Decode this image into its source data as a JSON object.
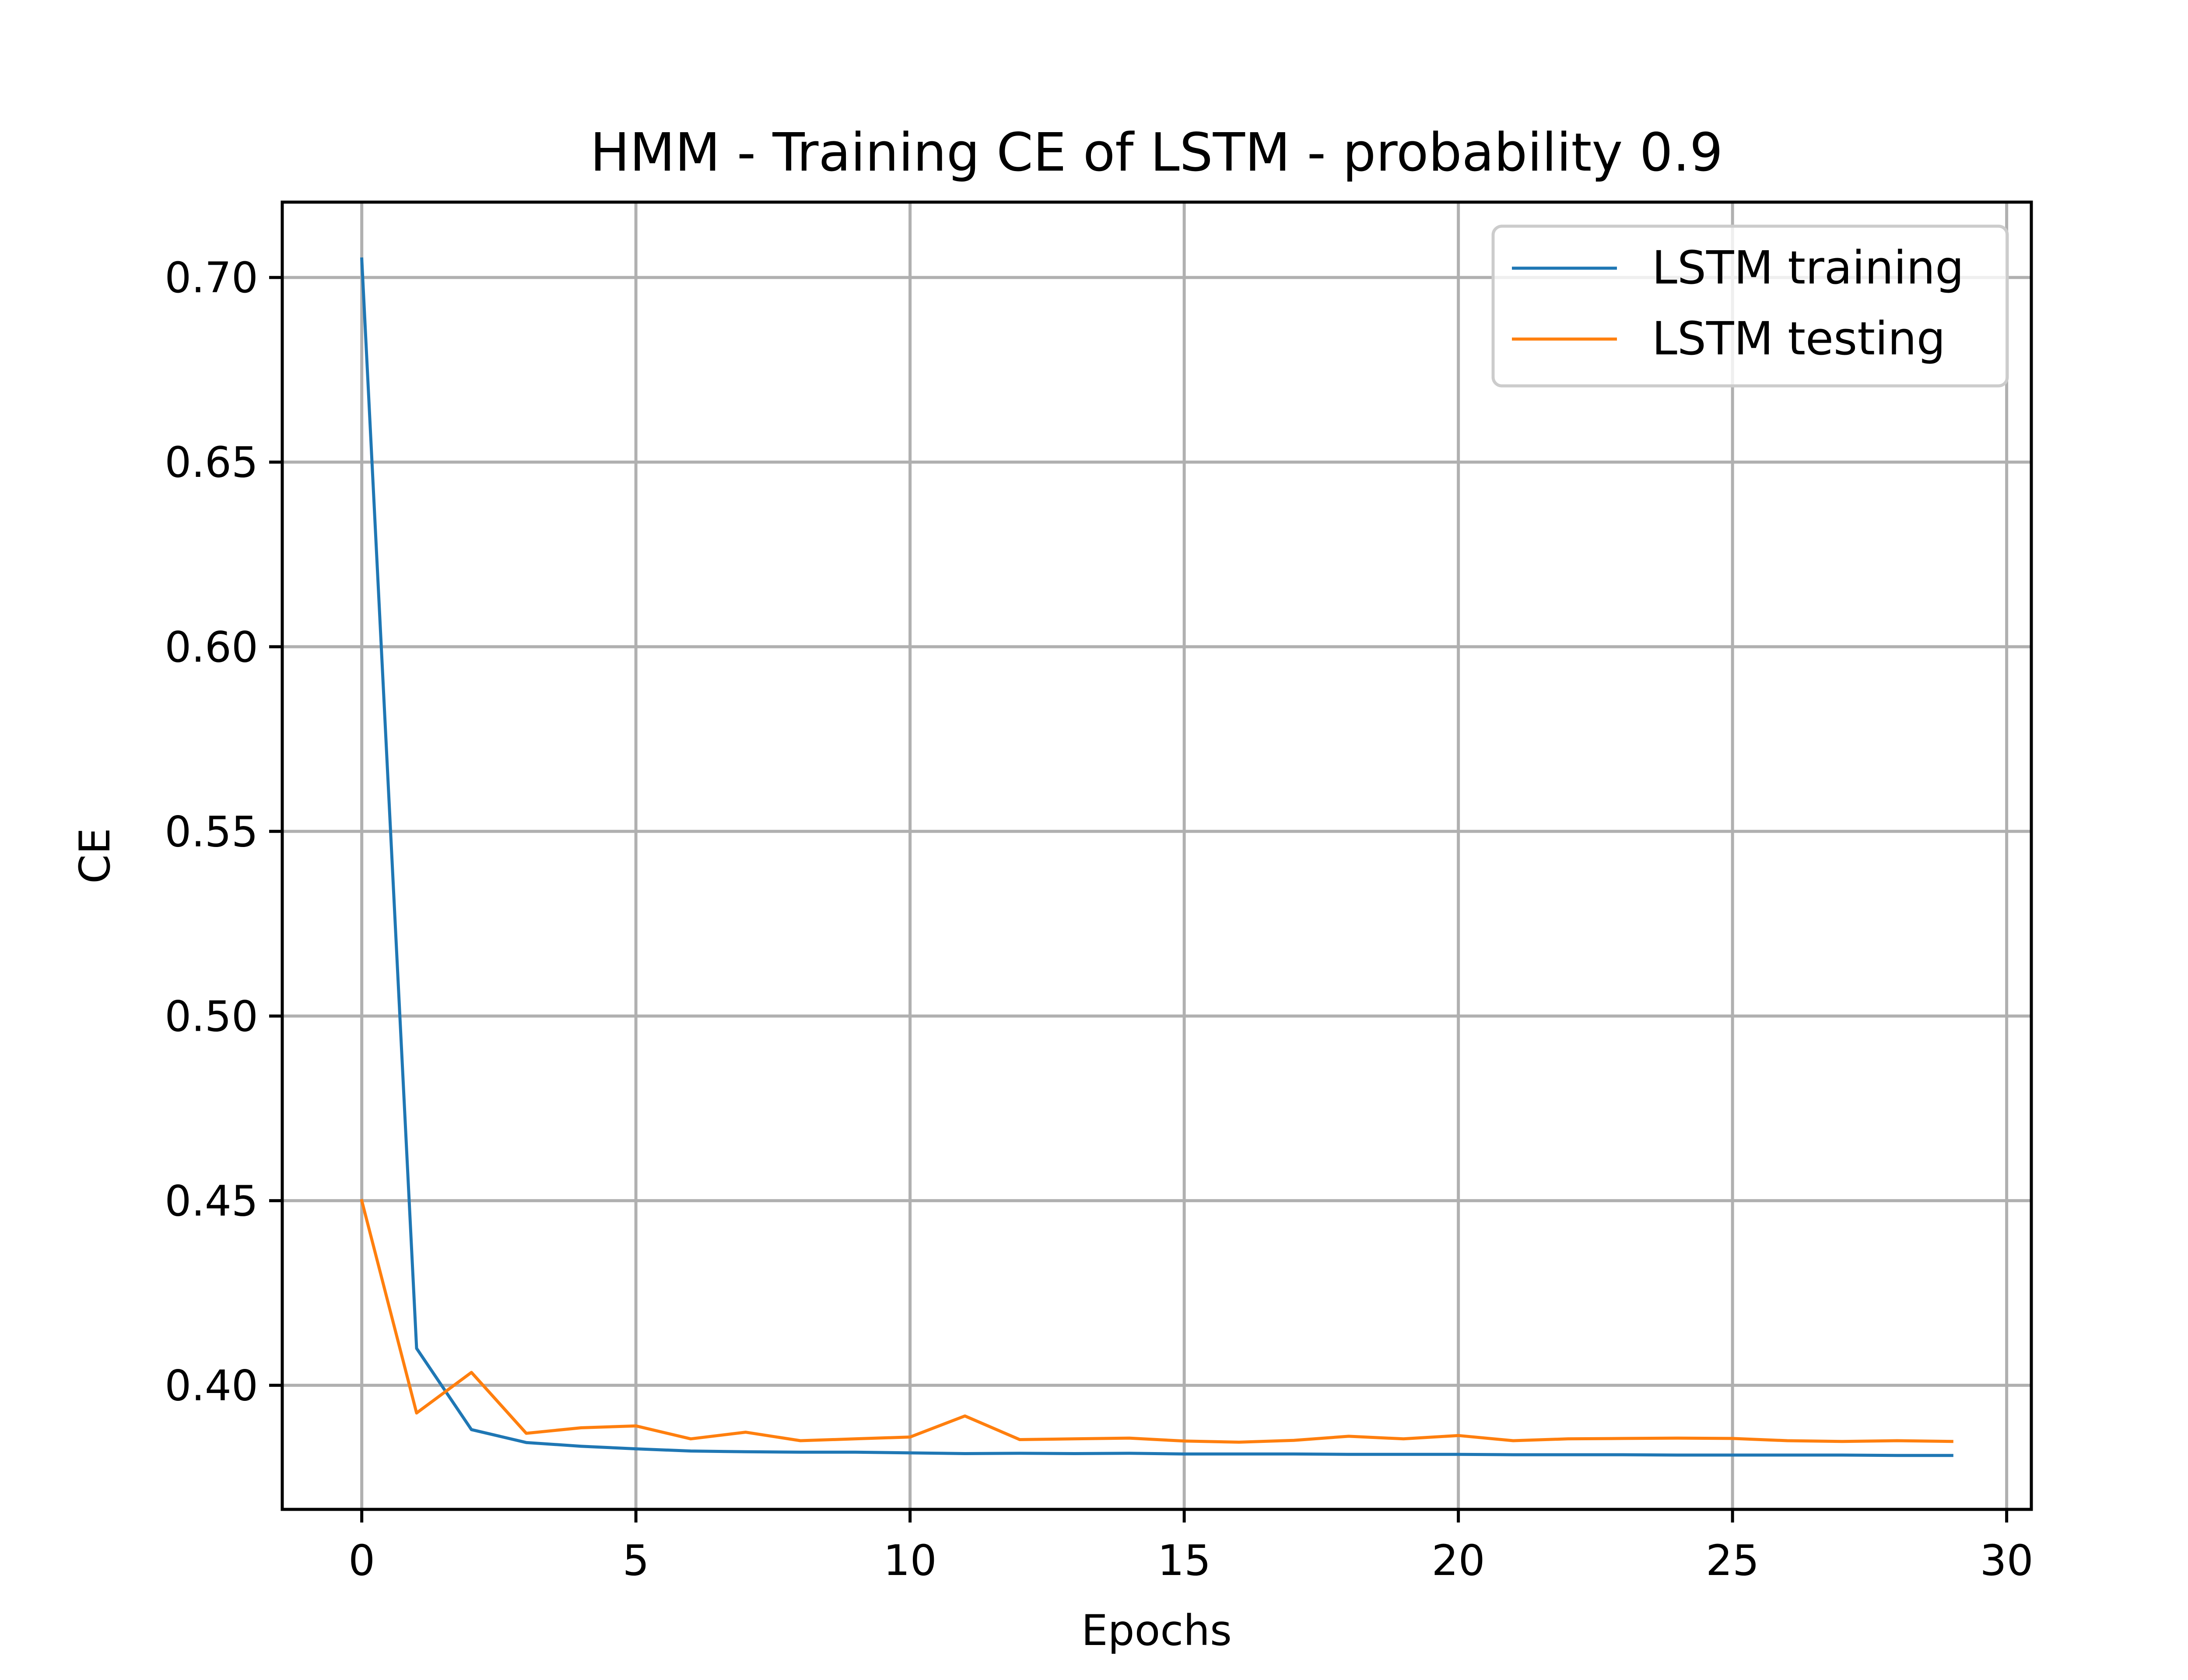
{
  "chart_data": {
    "type": "line",
    "title": "HMM - Training CE of LSTM - probability 0.9",
    "xlabel": "Epochs",
    "ylabel": "CE",
    "xlim": [
      -1.45,
      30.45
    ],
    "ylim": [
      0.3664,
      0.7204
    ],
    "xticks": [
      0,
      5,
      10,
      15,
      20,
      25,
      30
    ],
    "xtick_labels": [
      "0",
      "5",
      "10",
      "15",
      "20",
      "25",
      "30"
    ],
    "yticks": [
      0.4,
      0.45,
      0.5,
      0.55,
      0.6,
      0.65,
      0.7
    ],
    "ytick_labels": [
      "0.40",
      "0.45",
      "0.50",
      "0.55",
      "0.60",
      "0.65",
      "0.70"
    ],
    "grid": true,
    "legend_position": "top-right",
    "x": [
      0,
      1,
      2,
      3,
      4,
      5,
      6,
      7,
      8,
      9,
      10,
      11,
      12,
      13,
      14,
      15,
      16,
      17,
      18,
      19,
      20,
      21,
      22,
      23,
      24,
      25,
      26,
      27,
      28,
      29
    ],
    "series": [
      {
        "name": "LSTM training",
        "color": "#1f77b4",
        "values": [
          0.705,
          0.41,
          0.388,
          0.3845,
          0.3835,
          0.3828,
          0.3822,
          0.382,
          0.3819,
          0.3819,
          0.3817,
          0.3815,
          0.3816,
          0.3815,
          0.3816,
          0.3814,
          0.3814,
          0.3814,
          0.3813,
          0.3813,
          0.3813,
          0.3812,
          0.3812,
          0.3812,
          0.3811,
          0.3811,
          0.3811,
          0.3811,
          0.381,
          0.381
        ]
      },
      {
        "name": "LSTM testing",
        "color": "#ff7f0e",
        "values": [
          0.45,
          0.3925,
          0.4035,
          0.387,
          0.3885,
          0.389,
          0.3855,
          0.3873,
          0.385,
          0.3855,
          0.386,
          0.3917,
          0.3853,
          0.3855,
          0.3857,
          0.3849,
          0.3846,
          0.3851,
          0.3862,
          0.3855,
          0.3864,
          0.385,
          0.3855,
          0.3856,
          0.3857,
          0.3856,
          0.385,
          0.3848,
          0.385,
          0.3848
        ]
      }
    ]
  }
}
